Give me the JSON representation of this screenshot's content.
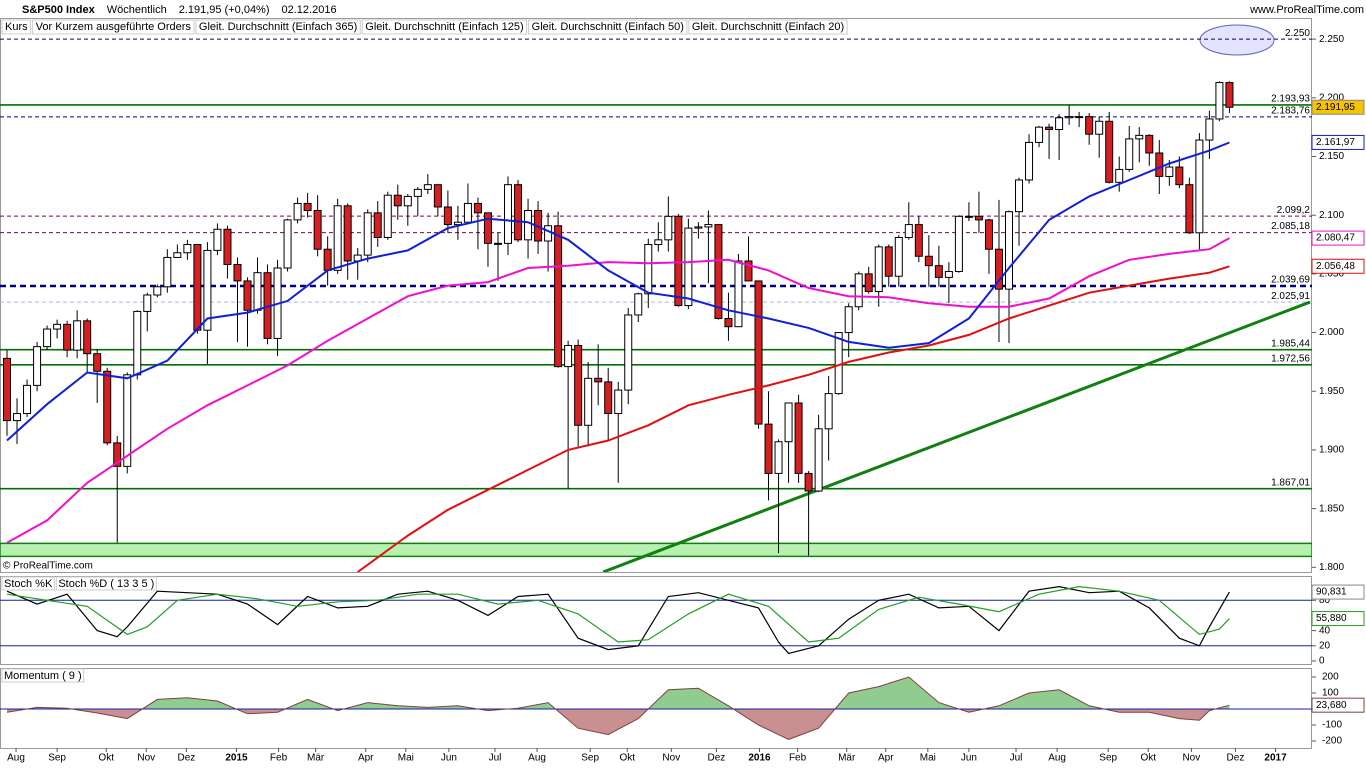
{
  "chart_data": {
    "type": "candlestick",
    "title": "S&P500 Index",
    "period": "Wöchentlich",
    "quote": "2.191,95 (+0,04%)",
    "date": "02.12.2016",
    "website": "www.ProRealTime.com",
    "copyright": "© ProRealTime.com",
    "price_name": "Kurs",
    "orders_name": "Vor Kurzem ausgeführte Orders",
    "orders_color": "#e06060",
    "candles": {
      "open": [
        1978,
        1925,
        1931,
        1955,
        1988,
        2003,
        2007,
        1985,
        2010,
        1982,
        1967,
        1906,
        1886,
        1964,
        2018,
        2032,
        2039,
        2064,
        2068,
        2075,
        2002,
        2070,
        2088,
        2058,
        2044,
        2019,
        2051,
        1995,
        2055,
        2096,
        2110,
        2104,
        2071,
        2053,
        2108,
        2061,
        2066,
        2102,
        2081,
        2117,
        2108,
        2116,
        2122,
        2126,
        2107,
        2092,
        2094,
        2110,
        2102,
        2076,
        2076,
        2126,
        2079,
        2104,
        2078,
        2091,
        1971,
        1989,
        1921,
        1961,
        1958,
        1931,
        1951,
        2015,
        2033,
        2075,
        2079,
        2099,
        2023,
        2089,
        2090,
        2092,
        2012,
        2005,
        2061,
        2044,
        1922,
        1880,
        1907,
        1940,
        1880,
        1865,
        1918,
        1948,
        2000,
        2022,
        2050,
        2035,
        2073,
        2048,
        2081,
        2092,
        2065,
        2057,
        2047,
        2052,
        2099,
        2099,
        2096,
        2071,
        2037,
        2103,
        2130,
        2162,
        2175,
        2173,
        2183,
        2184,
        2184,
        2169,
        2180,
        2128,
        2139,
        2165,
        2168,
        2153,
        2133,
        2141,
        2126,
        2085,
        2164,
        2182,
        2213
      ],
      "high": [
        1985,
        1944,
        1960,
        1992,
        2006,
        2011,
        2010,
        2019,
        2012,
        1986,
        1970,
        1912,
        1966,
        2019,
        2034,
        2041,
        2071,
        2075,
        2079,
        2075,
        2077,
        2093,
        2091,
        2064,
        2047,
        2064,
        2058,
        2062,
        2097,
        2115,
        2119,
        2117,
        2082,
        2114,
        2110,
        2072,
        2105,
        2112,
        2120,
        2126,
        2118,
        2124,
        2135,
        2126,
        2121,
        2108,
        2127,
        2115,
        2102,
        2085,
        2133,
        2130,
        2114,
        2112,
        2102,
        2103,
        1993,
        1994,
        1975,
        1990,
        1970,
        1958,
        2021,
        2034,
        2080,
        2094,
        2116,
        2101,
        2097,
        2094,
        2104,
        2092,
        2034,
        2067,
        2082,
        2044,
        1950,
        1909,
        1940,
        1947,
        1882,
        1930,
        1963,
        2000,
        2025,
        2052,
        2056,
        2075,
        2075,
        2083,
        2111,
        2099,
        2083,
        2074,
        2060,
        2100,
        2111,
        2120,
        2097,
        2113,
        2104,
        2132,
        2169,
        2176,
        2178,
        2186,
        2194,
        2188,
        2187,
        2184,
        2188,
        2150,
        2176,
        2175,
        2169,
        2164,
        2147,
        2150,
        2132,
        2170,
        2189,
        2214,
        2214
      ],
      "low": [
        1912,
        1905,
        1928,
        1950,
        1985,
        1995,
        1979,
        1978,
        1965,
        1940,
        1904,
        1821,
        1880,
        1960,
        2001,
        2030,
        2034,
        2064,
        2062,
        1999,
        1973,
        2066,
        2046,
        1992,
        1988,
        2016,
        1990,
        1980,
        2052,
        2093,
        2098,
        2065,
        2040,
        2050,
        2045,
        2045,
        2060,
        2073,
        2079,
        2096,
        2091,
        2099,
        2118,
        2099,
        2085,
        2079,
        2094,
        2071,
        2056,
        2044,
        2066,
        2077,
        2063,
        2067,
        2052,
        1970,
        1867,
        1903,
        1903,
        1938,
        1908,
        1872,
        1939,
        2009,
        2021,
        2069,
        2069,
        2022,
        2020,
        2080,
        2042,
        2011,
        1993,
        2005,
        2044,
        1918,
        1857,
        1812,
        1872,
        1872,
        1810,
        1864,
        1891,
        1947,
        1979,
        2019,
        2033,
        2022,
        2039,
        2039,
        2079,
        2060,
        2039,
        2039,
        2025,
        2051,
        2095,
        2085,
        2050,
        1992,
        1991,
        2074,
        2127,
        2158,
        2148,
        2147,
        2177,
        2175,
        2160,
        2149,
        2127,
        2120,
        2137,
        2145,
        2142,
        2118,
        2125,
        2123,
        2084,
        2071,
        2148,
        2180,
        2187
      ],
      "close": [
        1925,
        1931,
        1955,
        1988,
        2003,
        2007,
        1985,
        2010,
        1982,
        1967,
        1906,
        1886,
        1964,
        2018,
        2032,
        2039,
        2064,
        2068,
        2075,
        2002,
        2070,
        2088,
        2058,
        2044,
        2019,
        2051,
        1995,
        2055,
        2096,
        2110,
        2104,
        2071,
        2053,
        2108,
        2061,
        2066,
        2102,
        2081,
        2117,
        2108,
        2116,
        2122,
        2126,
        2107,
        2092,
        2094,
        2110,
        2102,
        2076,
        2076,
        2126,
        2079,
        2104,
        2078,
        2091,
        1971,
        1989,
        1921,
        1961,
        1958,
        1931,
        1951,
        2015,
        2033,
        2075,
        2079,
        2099,
        2023,
        2089,
        2090,
        2092,
        2012,
        2005,
        2061,
        2044,
        1922,
        1880,
        1907,
        1940,
        1880,
        1865,
        1918,
        1948,
        2000,
        2022,
        2050,
        2035,
        2073,
        2048,
        2081,
        2092,
        2065,
        2057,
        2047,
        2052,
        2099,
        2099,
        2096,
        2071,
        2037,
        2103,
        2130,
        2162,
        2175,
        2173,
        2183,
        2184,
        2184,
        2169,
        2180,
        2128,
        2139,
        2165,
        2168,
        2153,
        2133,
        2141,
        2126,
        2085,
        2164,
        2182,
        2213,
        2191.95
      ],
      "up_color": "#ffffff",
      "down_color": "#d42020",
      "last_label": "2.191,95",
      "last_color": "#f5c400"
    },
    "series": [
      {
        "name": "Gleit. Durchschnitt (Einfach 365)",
        "color": "#000000",
        "x": [],
        "values": []
      },
      {
        "name": "Gleit. Durchschnitt (Einfach 125)",
        "color": "#e01010",
        "x": [
          35,
          40,
          44,
          48,
          52,
          56,
          60,
          64,
          68,
          72,
          76,
          80,
          84,
          88,
          92,
          96,
          100,
          104,
          108,
          112,
          116,
          120,
          122
        ],
        "values": [
          1796,
          1827,
          1849,
          1866,
          1883,
          1900,
          1908,
          1921,
          1938,
          1947,
          1955,
          1964,
          1975,
          1983,
          1989,
          1998,
          2012,
          2023,
          2034,
          2040,
          2046,
          2051,
          2056.48
        ],
        "value_label": "2.056,48"
      },
      {
        "name": "Gleit. Durchschnitt (Einfach 50)",
        "color": "#ee10d0",
        "x": [
          0,
          4,
          8,
          12,
          16,
          20,
          24,
          28,
          32,
          36,
          40,
          44,
          48,
          52,
          56,
          60,
          64,
          68,
          72,
          76,
          80,
          84,
          88,
          92,
          96,
          100,
          104,
          108,
          112,
          116,
          120,
          122
        ],
        "values": [
          1821,
          1840,
          1872,
          1895,
          1918,
          1938,
          1955,
          1972,
          1993,
          2012,
          2031,
          2040,
          2043,
          2055,
          2057,
          2060,
          2059,
          2060,
          2062,
          2053,
          2038,
          2031,
          2030,
          2025,
          2022,
          2022,
          2029,
          2048,
          2062,
          2067,
          2071,
          2080.47
        ],
        "value_label": "2.080,47"
      },
      {
        "name": "Gleit. Durchschnitt (Einfach 20)",
        "color": "#1020d8",
        "x": [
          0,
          4,
          8,
          12,
          16,
          20,
          24,
          28,
          32,
          36,
          40,
          44,
          48,
          52,
          56,
          60,
          64,
          68,
          72,
          76,
          80,
          84,
          88,
          92,
          96,
          100,
          104,
          108,
          112,
          116,
          120,
          122
        ],
        "values": [
          1908,
          1939,
          1966,
          1961,
          1976,
          2012,
          2017,
          2027,
          2053,
          2063,
          2070,
          2089,
          2097,
          2094,
          2079,
          2053,
          2034,
          2029,
          2019,
          2012,
          2004,
          1992,
          1987,
          1991,
          2012,
          2055,
          2096,
          2116,
          2130,
          2144,
          2155,
          2161.97
        ],
        "value_label": "2.161,97"
      }
    ],
    "xlim": [
      -0.7,
      130.04
    ],
    "xticks": [
      {
        "value": 0.9,
        "label": "Aug"
      },
      {
        "value": 5,
        "label": "Sep"
      },
      {
        "value": 9.9,
        "label": "Okt"
      },
      {
        "value": 13.9,
        "label": "Nov"
      },
      {
        "value": 17.9,
        "label": "Dez"
      },
      {
        "value": 22.9,
        "label": "2015"
      },
      {
        "value": 27.1,
        "label": "Feb"
      },
      {
        "value": 30.8,
        "label": "Mär"
      },
      {
        "value": 35.8,
        "label": "Apr"
      },
      {
        "value": 39.8,
        "label": "Mai"
      },
      {
        "value": 44.1,
        "label": "Jun"
      },
      {
        "value": 48.7,
        "label": "Jul"
      },
      {
        "value": 52.9,
        "label": "Aug"
      },
      {
        "value": 58.2,
        "label": "Sep"
      },
      {
        "value": 61.9,
        "label": "Okt"
      },
      {
        "value": 66.3,
        "label": "Nov"
      },
      {
        "value": 70.8,
        "label": "Dez"
      },
      {
        "value": 75.1,
        "label": "2016"
      },
      {
        "value": 78.9,
        "label": "Feb"
      },
      {
        "value": 83.8,
        "label": "Mär"
      },
      {
        "value": 87.7,
        "label": "Apr"
      },
      {
        "value": 91.9,
        "label": "Mai"
      },
      {
        "value": 96,
        "label": "Jun"
      },
      {
        "value": 100.7,
        "label": "Jul"
      },
      {
        "value": 104.8,
        "label": "Aug"
      },
      {
        "value": 109.9,
        "label": "Sep"
      },
      {
        "value": 113.9,
        "label": "Okt"
      },
      {
        "value": 118.2,
        "label": "Nov"
      },
      {
        "value": 122.6,
        "label": "Dez"
      },
      {
        "value": 126.6,
        "label": "2017"
      }
    ],
    "ylim": [
      1796,
      2268
    ],
    "yticks": [
      {
        "value": 1800,
        "label": "1.800"
      },
      {
        "value": 1850,
        "label": "1.850"
      },
      {
        "value": 1900,
        "label": "1.900"
      },
      {
        "value": 1950,
        "label": "1.950"
      },
      {
        "value": 2000,
        "label": "2.000"
      },
      {
        "value": 2050,
        "label": "2.050"
      },
      {
        "value": 2100,
        "label": "2.100"
      },
      {
        "value": 2150,
        "label": "2.150"
      },
      {
        "value": 2200,
        "label": "2.200"
      },
      {
        "value": 2250,
        "label": "2.250"
      }
    ],
    "levels": [
      {
        "value": 2250,
        "label": "2.250",
        "color": "#000080",
        "style": "dashed"
      },
      {
        "value": 2193.93,
        "label": "2.193,93",
        "color": "#007000",
        "style": "solid"
      },
      {
        "value": 2183.76,
        "label": "2.183,76",
        "color": "#000080",
        "style": "dashed"
      },
      {
        "value": 2099.2,
        "label": "2.099,2",
        "color": "#800060",
        "style": "dashed"
      },
      {
        "value": 2085.18,
        "label": "2.085,18",
        "color": "#800060",
        "style": "dashed"
      },
      {
        "value": 2039.69,
        "label": "2.039,69",
        "color": "#000080",
        "style": "thick-dashed"
      },
      {
        "value": 2025.91,
        "label": "2.025,91",
        "color": "#a8b8e8",
        "style": "dashed"
      },
      {
        "value": 1985.44,
        "label": "1.985,44",
        "color": "#007000",
        "style": "solid"
      },
      {
        "value": 1972.56,
        "label": "1.972,56",
        "color": "#007000",
        "style": "solid"
      },
      {
        "value": 1867.01,
        "label": "1.867,01",
        "color": "#007000",
        "style": "solid"
      }
    ],
    "zone": [
      1809.3,
      1820.4
    ],
    "zone_color": "#b8f0b0",
    "trendline": {
      "x": [
        59.5,
        130.04
      ],
      "values": [
        1796,
        2026
      ],
      "color": "#108010"
    },
    "stochastic": {
      "ylim": [
        -4,
        112
      ],
      "yticks": [
        0,
        20,
        40,
        80
      ],
      "bands": [
        20,
        80
      ],
      "band_color": "#1020a0",
      "series": [
        {
          "name": "Stoch %K",
          "color": "#000000",
          "x": [
            0,
            3,
            6,
            9,
            11,
            12,
            15,
            18,
            21,
            24,
            27,
            30,
            33,
            36,
            39,
            42,
            45,
            48,
            51,
            54,
            57,
            60,
            63,
            66,
            69,
            72,
            75,
            77,
            78,
            81,
            84,
            87,
            90,
            93,
            96,
            99,
            102,
            105,
            108,
            111,
            114,
            117,
            119,
            120,
            122
          ],
          "values": [
            92,
            75,
            88,
            40,
            32,
            45,
            92,
            90,
            88,
            75,
            48,
            85,
            70,
            72,
            88,
            92,
            80,
            60,
            85,
            88,
            30,
            15,
            20,
            85,
            90,
            80,
            70,
            25,
            10,
            20,
            55,
            80,
            88,
            70,
            72,
            40,
            92,
            98,
            90,
            92,
            70,
            30,
            20,
            45,
            90.831
          ],
          "value_label": "90,831"
        },
        {
          "name": "Stoch %D ( 13 3 5 )",
          "color": "#20a020",
          "x": [
            0,
            4,
            8,
            12,
            14,
            17,
            21,
            25,
            29,
            33,
            37,
            41,
            45,
            49,
            53,
            57,
            61,
            64,
            68,
            72,
            76,
            80,
            83,
            87,
            91,
            95,
            99,
            103,
            107,
            111,
            115,
            119,
            121,
            122
          ],
          "values": [
            88,
            80,
            72,
            35,
            45,
            80,
            88,
            82,
            72,
            78,
            80,
            88,
            88,
            75,
            80,
            62,
            25,
            28,
            62,
            88,
            72,
            25,
            30,
            68,
            84,
            75,
            65,
            88,
            98,
            92,
            80,
            35,
            42,
            55.88
          ],
          "value_label": "55,880"
        }
      ]
    },
    "momentum": {
      "name": "Momentum ( 9 )",
      "color": "#804040",
      "up_color": "#90cc90",
      "down_color": "#c89090",
      "ylim": [
        -244,
        256
      ],
      "yticks": [
        -200,
        -100,
        100,
        200
      ],
      "x": [
        0,
        3,
        6,
        9,
        12,
        15,
        18,
        21,
        24,
        27,
        30,
        33,
        36,
        39,
        42,
        45,
        48,
        51,
        54,
        57,
        60,
        63,
        66,
        69,
        72,
        75,
        78,
        81,
        84,
        87,
        90,
        93,
        96,
        99,
        102,
        105,
        108,
        111,
        114,
        117,
        119,
        120,
        122
      ],
      "values": [
        -20,
        10,
        5,
        -25,
        -60,
        60,
        70,
        50,
        -30,
        -20,
        60,
        -10,
        40,
        20,
        10,
        20,
        -10,
        5,
        40,
        -120,
        -160,
        -60,
        120,
        130,
        20,
        -100,
        -190,
        -120,
        100,
        140,
        200,
        40,
        -20,
        20,
        100,
        120,
        20,
        -20,
        -20,
        -60,
        -70,
        -10,
        23.68
      ],
      "value_label": "23,680"
    }
  }
}
